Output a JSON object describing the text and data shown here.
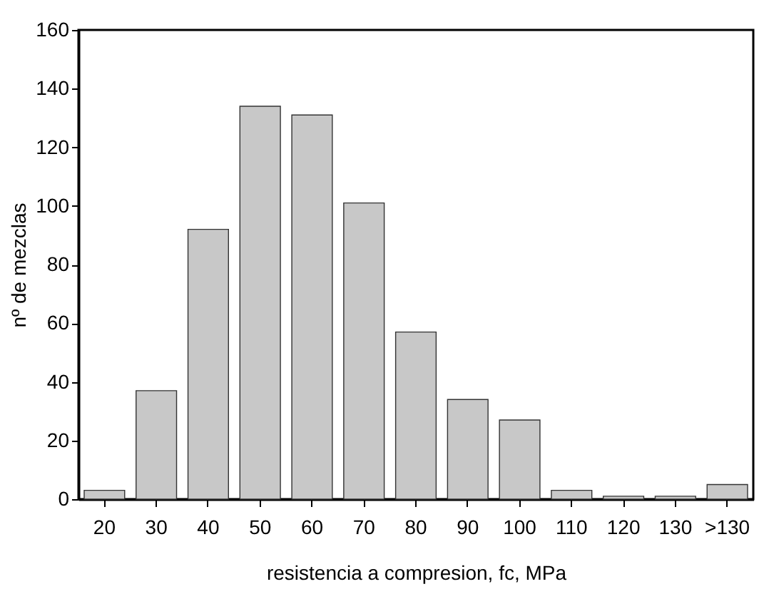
{
  "chart_data": {
    "type": "bar",
    "xlabel": "resistencia a compresion, fc, MPa",
    "ylabel": "nº de mezclas",
    "categories": [
      "20",
      "30",
      "40",
      "50",
      "60",
      "70",
      "80",
      "90",
      "100",
      "110",
      "120",
      "130",
      ">130"
    ],
    "values": [
      3,
      37,
      92,
      134,
      131,
      101,
      57,
      34,
      27,
      3,
      1,
      1,
      5
    ],
    "color": "#c8c8c8",
    "ylim": [
      0,
      160
    ],
    "yticks": [
      0,
      20,
      40,
      60,
      80,
      100,
      120,
      140,
      160
    ],
    "grid": false
  }
}
